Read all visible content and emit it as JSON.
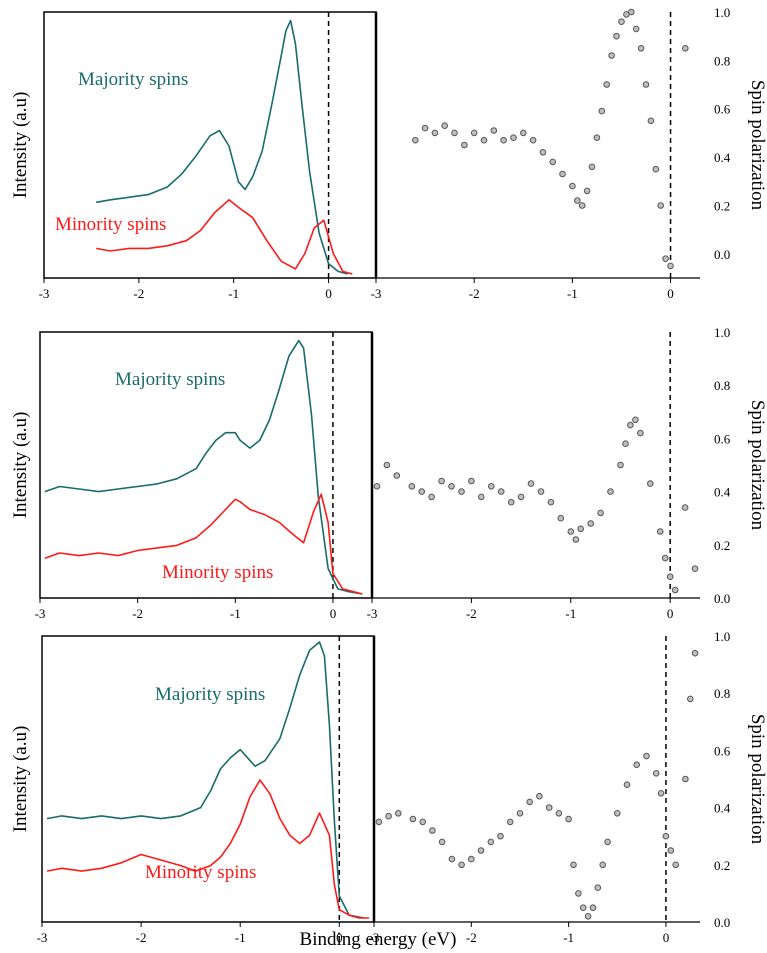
{
  "colors": {
    "majority": "#1a6b6b",
    "minority": "#ff1a1a",
    "points": "#555555",
    "frame": "#000000"
  },
  "shared_xlabel": "Binding energy (eV)",
  "chart_data": [
    {
      "type": "line",
      "left": {
        "ylabel": "Intensity (a.u)",
        "xlim": [
          -3,
          0.5
        ],
        "xticks": [
          "-3",
          "-2",
          "-1",
          "0"
        ],
        "fermi_line_x": 0,
        "series": [
          {
            "name": "Majority spins",
            "color": "#1a6b6b",
            "x": [
              -2.45,
              -2.3,
              -2.1,
              -1.9,
              -1.7,
              -1.55,
              -1.4,
              -1.25,
              -1.15,
              -1.05,
              -1.0,
              -0.95,
              -0.88,
              -0.8,
              -0.7,
              -0.6,
              -0.5,
              -0.45,
              -0.4,
              -0.35,
              -0.28,
              -0.2,
              -0.1,
              0.0,
              0.1,
              0.2
            ],
            "y": [
              0.28,
              0.29,
              0.3,
              0.31,
              0.34,
              0.39,
              0.46,
              0.54,
              0.56,
              0.5,
              0.43,
              0.36,
              0.33,
              0.38,
              0.48,
              0.66,
              0.85,
              0.95,
              0.99,
              0.9,
              0.66,
              0.4,
              0.16,
              0.04,
              0.01,
              0.0
            ]
          },
          {
            "name": "Minority spins",
            "color": "#ff1a1a",
            "x": [
              -2.45,
              -2.3,
              -2.1,
              -1.9,
              -1.7,
              -1.5,
              -1.35,
              -1.2,
              -1.05,
              -0.95,
              -0.8,
              -0.65,
              -0.5,
              -0.35,
              -0.25,
              -0.15,
              -0.05,
              0.05,
              0.15,
              0.25
            ],
            "y": [
              0.1,
              0.09,
              0.1,
              0.1,
              0.11,
              0.13,
              0.17,
              0.24,
              0.29,
              0.26,
              0.22,
              0.13,
              0.05,
              0.02,
              0.08,
              0.18,
              0.21,
              0.08,
              0.01,
              0.0
            ]
          }
        ],
        "annotations": [
          "Majority spins",
          "Minority spins"
        ]
      },
      "right": {
        "type": "scatter",
        "ylabel": "Spin polarization",
        "xlim": [
          -3,
          0.3
        ],
        "ylim": [
          -0.1,
          1.0
        ],
        "xticks": [
          "-3",
          "-2",
          "-1",
          "0"
        ],
        "yticks": [
          "0.0",
          "0.2",
          "0.4",
          "0.6",
          "0.8",
          "1.0"
        ],
        "fermi_line_x": 0,
        "x": [
          -2.6,
          -2.5,
          -2.4,
          -2.3,
          -2.2,
          -2.1,
          -2.0,
          -1.9,
          -1.8,
          -1.7,
          -1.6,
          -1.5,
          -1.4,
          -1.3,
          -1.2,
          -1.1,
          -1.0,
          -0.95,
          -0.9,
          -0.85,
          -0.8,
          -0.75,
          -0.7,
          -0.65,
          -0.6,
          -0.55,
          -0.5,
          -0.45,
          -0.4,
          -0.35,
          -0.3,
          -0.25,
          -0.2,
          -0.15,
          -0.1,
          -0.05,
          0.0,
          0.15
        ],
        "y": [
          0.47,
          0.52,
          0.5,
          0.53,
          0.5,
          0.45,
          0.5,
          0.47,
          0.51,
          0.47,
          0.48,
          0.5,
          0.47,
          0.42,
          0.38,
          0.33,
          0.28,
          0.22,
          0.2,
          0.26,
          0.36,
          0.48,
          0.59,
          0.7,
          0.82,
          0.9,
          0.96,
          0.99,
          1.0,
          0.93,
          0.85,
          0.7,
          0.55,
          0.35,
          0.2,
          -0.02,
          -0.05,
          0.85
        ]
      }
    },
    {
      "type": "line",
      "left": {
        "ylabel": "Intensity (a.u)",
        "xlim": [
          -3,
          0.4
        ],
        "xticks": [
          "-3",
          "-2",
          "-1",
          "0"
        ],
        "fermi_line_x": 0,
        "series": [
          {
            "name": "Majority spins",
            "color": "#1a6b6b",
            "x": [
              -2.95,
              -2.8,
              -2.6,
              -2.4,
              -2.2,
              -2.0,
              -1.8,
              -1.6,
              -1.4,
              -1.3,
              -1.2,
              -1.1,
              -1.0,
              -0.95,
              -0.85,
              -0.75,
              -0.65,
              -0.55,
              -0.45,
              -0.35,
              -0.3,
              -0.22,
              -0.15,
              -0.05,
              0.05,
              0.15,
              0.3
            ],
            "y": [
              0.4,
              0.42,
              0.41,
              0.4,
              0.41,
              0.42,
              0.43,
              0.45,
              0.49,
              0.55,
              0.6,
              0.63,
              0.63,
              0.6,
              0.57,
              0.6,
              0.68,
              0.8,
              0.93,
              0.99,
              0.96,
              0.7,
              0.38,
              0.1,
              0.02,
              0.01,
              0.0
            ]
          },
          {
            "name": "Minority spins",
            "color": "#ff1a1a",
            "x": [
              -2.95,
              -2.8,
              -2.6,
              -2.4,
              -2.2,
              -2.0,
              -1.8,
              -1.6,
              -1.4,
              -1.25,
              -1.1,
              -1.0,
              -0.95,
              -0.85,
              -0.7,
              -0.55,
              -0.4,
              -0.3,
              -0.2,
              -0.12,
              -0.05,
              0.0,
              0.1,
              0.2,
              0.3
            ],
            "y": [
              0.14,
              0.16,
              0.15,
              0.16,
              0.15,
              0.17,
              0.18,
              0.19,
              0.22,
              0.27,
              0.33,
              0.37,
              0.36,
              0.33,
              0.31,
              0.28,
              0.23,
              0.2,
              0.32,
              0.39,
              0.28,
              0.08,
              0.02,
              0.01,
              0.0
            ]
          }
        ],
        "annotations": [
          "Majority spins",
          "Minority spins"
        ]
      },
      "right": {
        "type": "scatter",
        "ylabel": "Spin polarization",
        "xlim": [
          -3,
          0.3
        ],
        "ylim": [
          0.0,
          1.0
        ],
        "xticks": [
          "-3",
          "-2",
          "-1",
          "0"
        ],
        "yticks": [
          "0.0",
          "0.2",
          "0.4",
          "0.6",
          "0.8",
          "1.0"
        ],
        "fermi_line_x": 0,
        "x": [
          -2.95,
          -2.85,
          -2.75,
          -2.6,
          -2.5,
          -2.4,
          -2.3,
          -2.2,
          -2.1,
          -2.0,
          -1.9,
          -1.8,
          -1.7,
          -1.6,
          -1.5,
          -1.4,
          -1.3,
          -1.2,
          -1.1,
          -1.0,
          -0.95,
          -0.9,
          -0.8,
          -0.7,
          -0.6,
          -0.5,
          -0.45,
          -0.4,
          -0.35,
          -0.3,
          -0.2,
          -0.1,
          -0.05,
          0.0,
          0.05,
          0.15,
          0.25
        ],
        "y": [
          0.42,
          0.5,
          0.46,
          0.42,
          0.4,
          0.38,
          0.44,
          0.42,
          0.4,
          0.44,
          0.38,
          0.42,
          0.4,
          0.36,
          0.38,
          0.43,
          0.4,
          0.36,
          0.3,
          0.25,
          0.22,
          0.26,
          0.28,
          0.32,
          0.4,
          0.5,
          0.58,
          0.65,
          0.67,
          0.62,
          0.43,
          0.25,
          0.15,
          0.08,
          0.03,
          0.34,
          0.11
        ]
      }
    },
    {
      "type": "line",
      "left": {
        "ylabel": "Intensity (a.u)",
        "xlim": [
          -3,
          0.35
        ],
        "xticks": [
          "-3",
          "-2",
          "-1",
          "0"
        ],
        "fermi_line_x": 0,
        "series": [
          {
            "name": "Majority spins",
            "color": "#1a6b6b",
            "x": [
              -2.95,
              -2.8,
              -2.6,
              -2.4,
              -2.2,
              -2.0,
              -1.8,
              -1.6,
              -1.4,
              -1.3,
              -1.2,
              -1.1,
              -1.0,
              -0.95,
              -0.85,
              -0.75,
              -0.6,
              -0.5,
              -0.4,
              -0.3,
              -0.2,
              -0.15,
              -0.1,
              -0.05,
              0.0,
              0.1,
              0.25
            ],
            "y": [
              0.36,
              0.37,
              0.36,
              0.37,
              0.36,
              0.37,
              0.36,
              0.37,
              0.4,
              0.46,
              0.54,
              0.58,
              0.61,
              0.59,
              0.55,
              0.57,
              0.65,
              0.76,
              0.88,
              0.97,
              1.0,
              0.95,
              0.7,
              0.35,
              0.08,
              0.01,
              0.0
            ]
          },
          {
            "name": "Minority spins",
            "color": "#ff1a1a",
            "x": [
              -2.95,
              -2.8,
              -2.6,
              -2.4,
              -2.2,
              -2.0,
              -1.8,
              -1.6,
              -1.45,
              -1.3,
              -1.2,
              -1.1,
              -1.0,
              -0.9,
              -0.8,
              -0.7,
              -0.6,
              -0.5,
              -0.4,
              -0.3,
              -0.2,
              -0.1,
              -0.05,
              0.0,
              0.1,
              0.2,
              0.3
            ],
            "y": [
              0.17,
              0.18,
              0.17,
              0.18,
              0.2,
              0.23,
              0.21,
              0.19,
              0.17,
              0.19,
              0.22,
              0.27,
              0.34,
              0.44,
              0.5,
              0.45,
              0.36,
              0.3,
              0.27,
              0.3,
              0.38,
              0.3,
              0.12,
              0.03,
              0.01,
              0.0,
              0.0
            ]
          }
        ],
        "annotations": [
          "Majority spins",
          "Minority spins"
        ]
      },
      "right": {
        "type": "scatter",
        "ylabel": "Spin polarization",
        "xlim": [
          -3,
          0.35
        ],
        "ylim": [
          0.0,
          1.0
        ],
        "xticks": [
          "-3",
          "-2",
          "-1",
          "0"
        ],
        "yticks": [
          "0.0",
          "0.2",
          "0.4",
          "0.6",
          "0.8",
          "1.0"
        ],
        "fermi_line_x": 0,
        "x": [
          -2.95,
          -2.85,
          -2.75,
          -2.6,
          -2.5,
          -2.4,
          -2.3,
          -2.2,
          -2.1,
          -2.0,
          -1.9,
          -1.8,
          -1.7,
          -1.6,
          -1.5,
          -1.4,
          -1.3,
          -1.2,
          -1.1,
          -1.0,
          -0.95,
          -0.9,
          -0.85,
          -0.8,
          -0.75,
          -0.7,
          -0.65,
          -0.6,
          -0.5,
          -0.4,
          -0.3,
          -0.2,
          -0.1,
          -0.05,
          0.0,
          0.05,
          0.1,
          0.2,
          0.25,
          0.3
        ],
        "y": [
          0.35,
          0.37,
          0.38,
          0.36,
          0.35,
          0.32,
          0.28,
          0.22,
          0.2,
          0.22,
          0.25,
          0.28,
          0.3,
          0.35,
          0.38,
          0.42,
          0.44,
          0.4,
          0.38,
          0.36,
          0.2,
          0.1,
          0.05,
          0.02,
          0.05,
          0.12,
          0.2,
          0.28,
          0.38,
          0.48,
          0.55,
          0.58,
          0.52,
          0.45,
          0.3,
          0.25,
          0.2,
          0.5,
          0.78,
          0.94
        ]
      }
    }
  ]
}
